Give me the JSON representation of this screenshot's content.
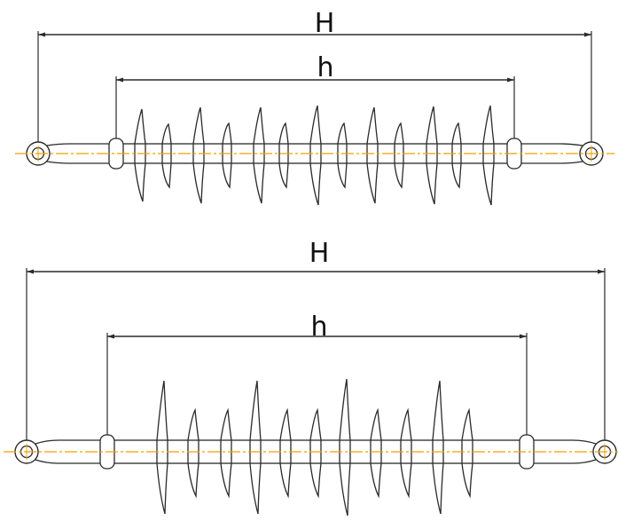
{
  "diagrams": [
    {
      "overall_length_label": "H",
      "insulation_length_label": "h"
    },
    {
      "overall_length_label": "H",
      "insulation_length_label": "h"
    }
  ],
  "colors": {
    "outline": "#2a2a2a",
    "centerline": "#f2a000",
    "background": "#ffffff"
  }
}
